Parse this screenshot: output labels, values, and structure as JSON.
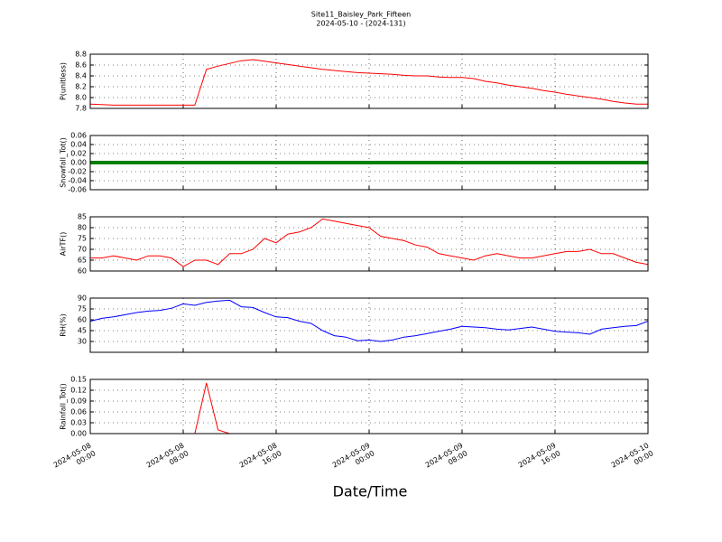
{
  "title": "Site11_Baisley_Park_Fifteen",
  "subtitle": "2024-05-10 - (2024-131)",
  "xlabel": "Date/Time",
  "xlim": [
    "2024-05-08 00:00",
    "2024-05-10 00:00"
  ],
  "xticks": [
    "2024-05-08 00:00",
    "2024-05-08 08:00",
    "2024-05-08 16:00",
    "2024-05-09 00:00",
    "2024-05-09 08:00",
    "2024-05-09 16:00",
    "2024-05-10 00:00"
  ],
  "x": [
    "2024-05-08 00:00",
    "2024-05-08 01:00",
    "2024-05-08 02:00",
    "2024-05-08 03:00",
    "2024-05-08 04:00",
    "2024-05-08 05:00",
    "2024-05-08 06:00",
    "2024-05-08 07:00",
    "2024-05-08 08:00",
    "2024-05-08 09:00",
    "2024-05-08 10:00",
    "2024-05-08 11:00",
    "2024-05-08 12:00",
    "2024-05-08 13:00",
    "2024-05-08 14:00",
    "2024-05-08 15:00",
    "2024-05-08 16:00",
    "2024-05-08 17:00",
    "2024-05-08 18:00",
    "2024-05-08 19:00",
    "2024-05-08 20:00",
    "2024-05-08 21:00",
    "2024-05-08 22:00",
    "2024-05-08 23:00",
    "2024-05-09 00:00",
    "2024-05-09 01:00",
    "2024-05-09 02:00",
    "2024-05-09 03:00",
    "2024-05-09 04:00",
    "2024-05-09 05:00",
    "2024-05-09 06:00",
    "2024-05-09 07:00",
    "2024-05-09 08:00",
    "2024-05-09 09:00",
    "2024-05-09 10:00",
    "2024-05-09 11:00",
    "2024-05-09 12:00",
    "2024-05-09 13:00",
    "2024-05-09 14:00",
    "2024-05-09 15:00",
    "2024-05-09 16:00",
    "2024-05-09 17:00",
    "2024-05-09 18:00",
    "2024-05-09 19:00",
    "2024-05-09 20:00",
    "2024-05-09 21:00",
    "2024-05-09 22:00",
    "2024-05-09 23:00",
    "2024-05-10 00:00"
  ],
  "chart_data": [
    {
      "type": "line",
      "ylabel": "P(unitless)",
      "ylim": [
        7.8,
        8.8
      ],
      "grid": true,
      "yticks": [
        7.8,
        {
          "value": 8,
          "label": "8.0"
        },
        8.2,
        8.4,
        8.6,
        8.8
      ],
      "series": [
        {
          "color": "#ff0000",
          "values": [
            7.88,
            7.87,
            7.86,
            7.86,
            7.86,
            7.86,
            7.86,
            7.86,
            7.86,
            7.86,
            8.52,
            8.58,
            8.63,
            8.68,
            8.7,
            8.67,
            8.64,
            8.61,
            8.58,
            8.55,
            8.52,
            8.5,
            8.48,
            8.46,
            8.45,
            8.44,
            8.43,
            8.41,
            8.4,
            8.4,
            8.38,
            8.37,
            8.37,
            8.35,
            8.3,
            8.27,
            8.23,
            8.2,
            8.17,
            8.13,
            8.1,
            8.06,
            8.03,
            8,
            7.97,
            7.93,
            7.9,
            7.88,
            7.88
          ]
        }
      ]
    },
    {
      "type": "line",
      "ylabel": "Snowfall_Tot()",
      "ylim": [
        -0.06,
        0.06
      ],
      "grid": true,
      "yticks": [
        -0.06,
        -0.04,
        -0.02,
        {
          "value": 0,
          "label": "0.00"
        },
        0.02,
        0.04,
        0.06
      ],
      "series": [
        {
          "color": "#008000",
          "values": [
            0,
            0,
            0,
            0,
            0,
            0,
            0,
            0,
            0,
            0,
            0,
            0,
            0,
            0,
            0,
            0,
            0,
            0,
            0,
            0,
            0,
            0,
            0,
            0,
            0,
            0,
            0,
            0,
            0,
            0,
            0,
            0,
            0,
            0,
            0,
            0,
            0,
            0,
            0,
            0,
            0,
            0,
            0,
            0,
            0,
            0,
            0,
            0,
            0
          ]
        }
      ]
    },
    {
      "type": "line",
      "ylabel": "AirTF()",
      "ylim": [
        60,
        85
      ],
      "grid": true,
      "yticks": [
        60,
        65,
        70,
        75,
        80,
        85
      ],
      "series": [
        {
          "color": "#ff0000",
          "values": [
            66,
            66,
            67,
            66,
            65,
            67,
            67,
            66,
            62,
            65,
            65,
            63,
            68,
            68,
            70,
            75,
            73,
            77,
            78,
            80,
            84,
            83,
            82,
            81,
            80,
            76,
            75,
            74,
            72,
            71,
            68,
            67,
            66,
            65,
            67,
            68,
            67,
            66,
            66,
            67,
            68,
            69,
            69,
            70,
            68,
            68,
            66,
            64,
            63
          ]
        }
      ]
    },
    {
      "type": "line",
      "ylabel": "RH(%)",
      "ylim": [
        15,
        90
      ],
      "grid": true,
      "yticks": [
        30,
        45,
        60,
        75,
        90
      ],
      "series": [
        {
          "color": "#0000ff",
          "values": [
            58,
            62,
            64,
            67,
            70,
            72,
            73,
            76,
            82,
            80,
            84,
            86,
            87,
            78,
            77,
            70,
            64,
            63,
            58,
            55,
            45,
            38,
            36,
            31,
            32,
            30,
            32,
            36,
            38,
            41,
            44,
            47,
            51,
            50,
            49,
            47,
            46,
            48,
            50,
            47,
            44,
            43,
            42,
            40,
            47,
            49,
            51,
            52,
            58
          ]
        }
      ]
    },
    {
      "type": "line",
      "ylabel": "Rainfall_Tot()",
      "ylim": [
        0,
        0.15
      ],
      "grid": true,
      "yticks": [
        {
          "value": 0,
          "label": "0.00"
        },
        0.03,
        0.06,
        0.09,
        0.12,
        0.15
      ],
      "series": [
        {
          "color": "#ff0000",
          "values": [
            0,
            0,
            0,
            0,
            0,
            0,
            0,
            0,
            0,
            0,
            0.14,
            0.01,
            0,
            0,
            0,
            0,
            0,
            0,
            0,
            0,
            0,
            0,
            0,
            0,
            0,
            0,
            0,
            0,
            0,
            0,
            0,
            0,
            0,
            0,
            0,
            0,
            0,
            0,
            0,
            0,
            0,
            0,
            0,
            0,
            0,
            0,
            0,
            0,
            0
          ]
        }
      ]
    }
  ]
}
